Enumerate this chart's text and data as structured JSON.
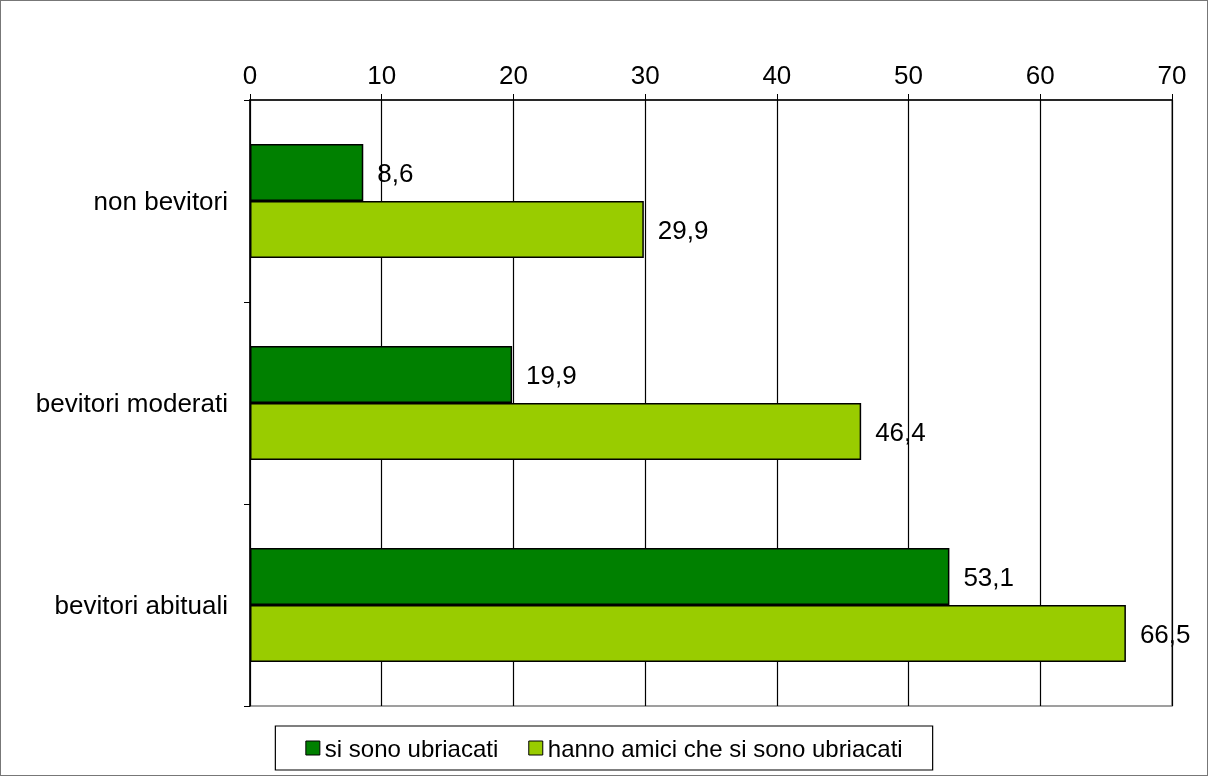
{
  "chart_data": {
    "type": "bar",
    "orientation": "horizontal",
    "categories": [
      "non bevitori",
      "bevitori moderati",
      "bevitori abituali"
    ],
    "series": [
      {
        "name": "si sono ubriacati",
        "color": "#008000",
        "values": [
          8.6,
          19.9,
          53.1
        ],
        "value_labels": [
          "8,6",
          "19,9",
          "53,1"
        ]
      },
      {
        "name": "hanno amici che si sono ubriacati",
        "color": "#99cc00",
        "values": [
          29.9,
          46.4,
          66.5
        ],
        "value_labels": [
          "29,9",
          "46,4",
          "66,5"
        ]
      }
    ],
    "xlim": [
      0,
      70
    ],
    "xticks": [
      0,
      10,
      20,
      30,
      40,
      50,
      60,
      70
    ],
    "grid": "x",
    "legend": "bottom"
  }
}
